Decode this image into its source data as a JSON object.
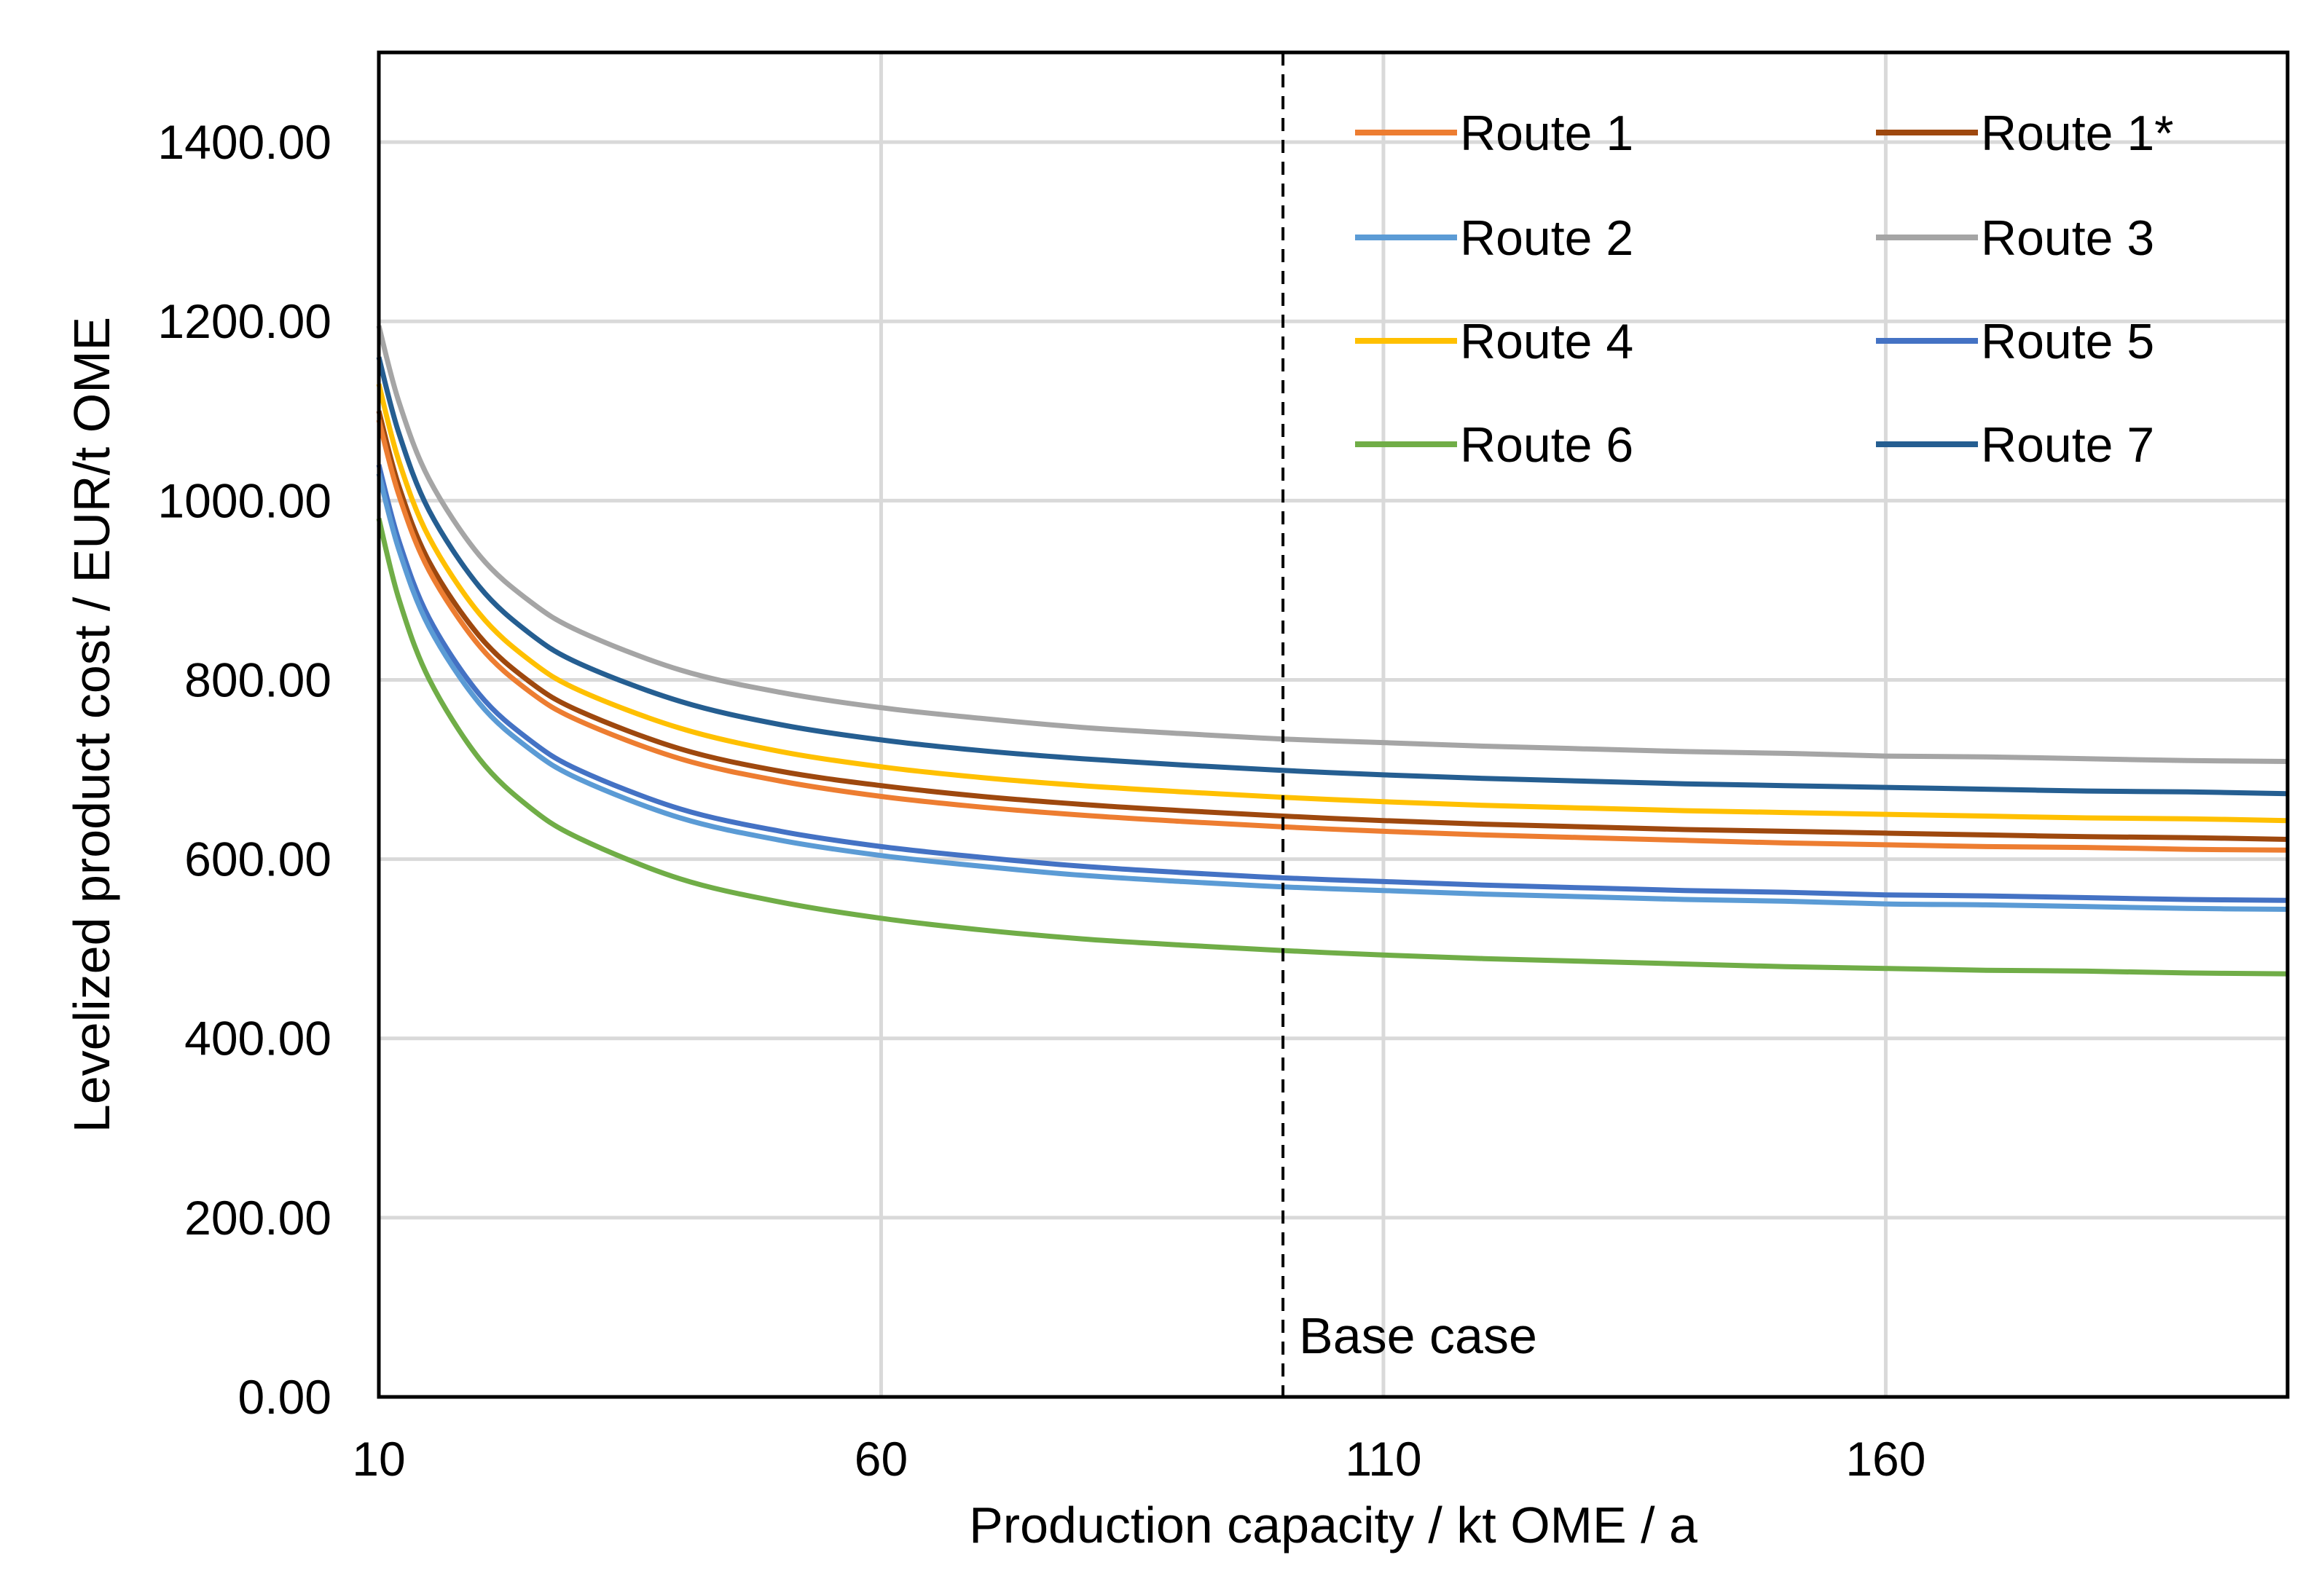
{
  "chart_data": {
    "type": "line",
    "title": "",
    "xlabel": "Production capacity / kt OME / a",
    "ylabel": "Levelized product cost / EUR/t OME",
    "xlim": [
      10,
      200
    ],
    "ylim": [
      0,
      1500
    ],
    "x_ticks": [
      "10",
      "60",
      "110",
      "160"
    ],
    "x_tick_values": [
      10,
      60,
      110,
      160
    ],
    "y_ticks": [
      "0.00",
      "200.00",
      "400.00",
      "600.00",
      "800.00",
      "1000.00",
      "1200.00",
      "1400.00"
    ],
    "y_tick_values": [
      0,
      200,
      400,
      600,
      800,
      1000,
      1200,
      1400
    ],
    "grid": true,
    "legend_position": "top-right",
    "annotation": {
      "label": "Base case",
      "x": 100,
      "style": "dashed vertical line"
    },
    "x": [
      10,
      12,
      15,
      20,
      25,
      30,
      40,
      50,
      60,
      70,
      80,
      90,
      100,
      110,
      120,
      130,
      140,
      150,
      160,
      170,
      180,
      190,
      200
    ],
    "series": [
      {
        "name": "Route 1",
        "color": "#ED7D31",
        "values": [
          1090,
          1006,
          922,
          838,
          787,
          754,
          712,
          687,
          670,
          658,
          649,
          642,
          636,
          631,
          627,
          624,
          621,
          618,
          616,
          614,
          613,
          611,
          610
        ]
      },
      {
        "name": "Route 1*",
        "color": "#9E480E",
        "values": [
          1100,
          1016,
          932,
          849,
          798,
          765,
          723,
          698,
          682,
          670,
          661,
          654,
          648,
          643,
          639,
          636,
          633,
          631,
          629,
          627,
          625,
          624,
          622
        ]
      },
      {
        "name": "Route 2",
        "color": "#5B9BD5",
        "values": [
          1030,
          945,
          859,
          774,
          723,
          689,
          646,
          621,
          604,
          592,
          582,
          575,
          569,
          565,
          561,
          558,
          555,
          553,
          550,
          549,
          547,
          545,
          544
        ]
      },
      {
        "name": "Route 3",
        "color": "#A5A5A5",
        "values": [
          1195,
          1110,
          1024,
          939,
          888,
          854,
          811,
          786,
          769,
          757,
          747,
          740,
          734,
          730,
          726,
          723,
          720,
          718,
          715,
          714,
          712,
          710,
          709
        ]
      },
      {
        "name": "Route 4",
        "color": "#FFC000",
        "values": [
          1130,
          1044,
          959,
          874,
          822,
          788,
          746,
          720,
          703,
          691,
          682,
          675,
          669,
          664,
          660,
          657,
          654,
          652,
          650,
          648,
          646,
          645,
          643
        ]
      },
      {
        "name": "Route 5",
        "color": "#4472C4",
        "values": [
          1040,
          955,
          869,
          784,
          733,
          699,
          656,
          631,
          614,
          602,
          592,
          585,
          579,
          575,
          571,
          568,
          565,
          563,
          560,
          559,
          557,
          555,
          554
        ]
      },
      {
        "name": "Route 6",
        "color": "#70AD47",
        "values": [
          980,
          890,
          801,
          712,
          658,
          623,
          578,
          552,
          534,
          521,
          511,
          504,
          498,
          493,
          489,
          486,
          483,
          480,
          478,
          476,
          475,
          473,
          472
        ]
      },
      {
        "name": "Route 7",
        "color": "#255E91",
        "values": [
          1160,
          1075,
          989,
          904,
          852,
          818,
          776,
          750,
          733,
          721,
          712,
          705,
          699,
          694,
          690,
          687,
          684,
          682,
          680,
          678,
          676,
          675,
          673
        ]
      }
    ]
  }
}
